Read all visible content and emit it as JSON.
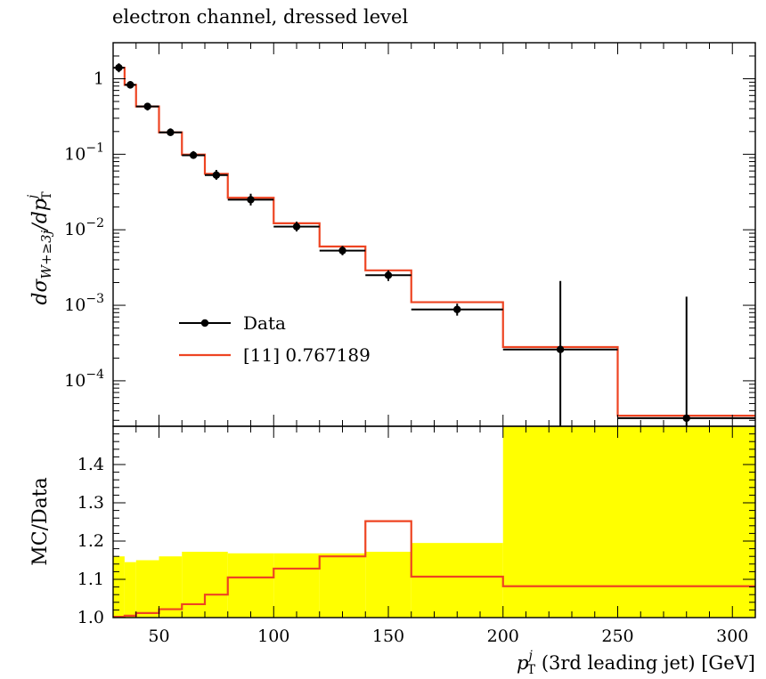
{
  "chart_data": [
    {
      "type": "histogram",
      "panel": "main",
      "title": "electron channel, dressed level",
      "ylabel_parts": {
        "base": "dσ",
        "sub": "W+≥3j",
        "mid": "/dp",
        "sup": "j",
        "sub2": "T"
      },
      "yscale": "log",
      "ylim": [
        2.5e-05,
        3.0
      ],
      "xlim": [
        30,
        310
      ],
      "y_ticks": [
        {
          "value": 1,
          "label": "1"
        },
        {
          "value": 0.1,
          "label_base": "10",
          "label_exp": "−1"
        },
        {
          "value": 0.01,
          "label_base": "10",
          "label_exp": "−2"
        },
        {
          "value": 0.001,
          "label_base": "10",
          "label_exp": "−3"
        },
        {
          "value": 0.0001,
          "label_base": "10",
          "label_exp": "−4"
        }
      ],
      "bins": [
        30,
        35,
        40,
        50,
        60,
        70,
        80,
        100,
        120,
        140,
        160,
        200,
        250,
        310
      ],
      "series": [
        {
          "name": "Data",
          "style": "points",
          "color": "#000000",
          "values": [
            1.4,
            0.83,
            0.43,
            0.195,
            0.097,
            0.053,
            0.025,
            0.011,
            0.0053,
            0.0025,
            0.00088,
            0.00026,
            3.2e-05
          ],
          "err_up": [
            1.6,
            0.93,
            0.48,
            0.22,
            0.11,
            0.062,
            0.03,
            0.0128,
            0.0061,
            0.0029,
            0.00105,
            0.0021,
            0.0013
          ],
          "err_down": [
            1.22,
            0.74,
            0.38,
            0.175,
            0.087,
            0.046,
            0.021,
            0.0095,
            0.0046,
            0.0021,
            0.00073,
            2.5e-05,
            2.5e-05
          ]
        },
        {
          "name": "[11] 0.767189",
          "style": "step",
          "color": "#ee4422",
          "values": [
            1.4,
            0.83,
            0.43,
            0.195,
            0.099,
            0.055,
            0.0265,
            0.0122,
            0.006,
            0.0029,
            0.0011,
            0.00028,
            3.45e-05
          ]
        }
      ],
      "legend": {
        "placement": "center-left"
      }
    },
    {
      "type": "histogram",
      "panel": "ratio",
      "ylabel": "MC/Data",
      "xlabel_parts": {
        "base": "p",
        "sup": "j",
        "sub": "T",
        "rest": " (3rd leading jet) [GeV]"
      },
      "xlim": [
        30,
        310
      ],
      "ylim": [
        1.0,
        1.5
      ],
      "y_ticks": [
        {
          "value": 1.0,
          "label": "1.0"
        },
        {
          "value": 1.1,
          "label": "1.1"
        },
        {
          "value": 1.2,
          "label": "1.2"
        },
        {
          "value": 1.3,
          "label": "1.3"
        },
        {
          "value": 1.4,
          "label": "1.4"
        }
      ],
      "x_ticks": [
        {
          "value": 50,
          "label": "50"
        },
        {
          "value": 100,
          "label": "100"
        },
        {
          "value": 150,
          "label": "150"
        },
        {
          "value": 200,
          "label": "200"
        },
        {
          "value": 250,
          "label": "250"
        },
        {
          "value": 300,
          "label": "300"
        }
      ],
      "bins": [
        30,
        35,
        40,
        50,
        60,
        70,
        80,
        100,
        120,
        140,
        160,
        200,
        250,
        310
      ],
      "band": {
        "color": "#ffff00",
        "upper": [
          1.16,
          1.145,
          1.15,
          1.16,
          1.172,
          1.172,
          1.168,
          1.168,
          1.168,
          1.172,
          1.195,
          1.5,
          1.5
        ],
        "lower": [
          1.0,
          1.0,
          1.0,
          1.0,
          1.0,
          1.0,
          1.0,
          1.0,
          1.0,
          1.0,
          1.0,
          1.0,
          1.0
        ]
      },
      "series": [
        {
          "name": "[11] 0.767189",
          "style": "step",
          "color": "#ee4422",
          "values": [
            1.002,
            1.005,
            1.012,
            1.022,
            1.035,
            1.06,
            1.105,
            1.128,
            1.16,
            1.252,
            1.107,
            1.082,
            1.082
          ]
        }
      ]
    }
  ]
}
